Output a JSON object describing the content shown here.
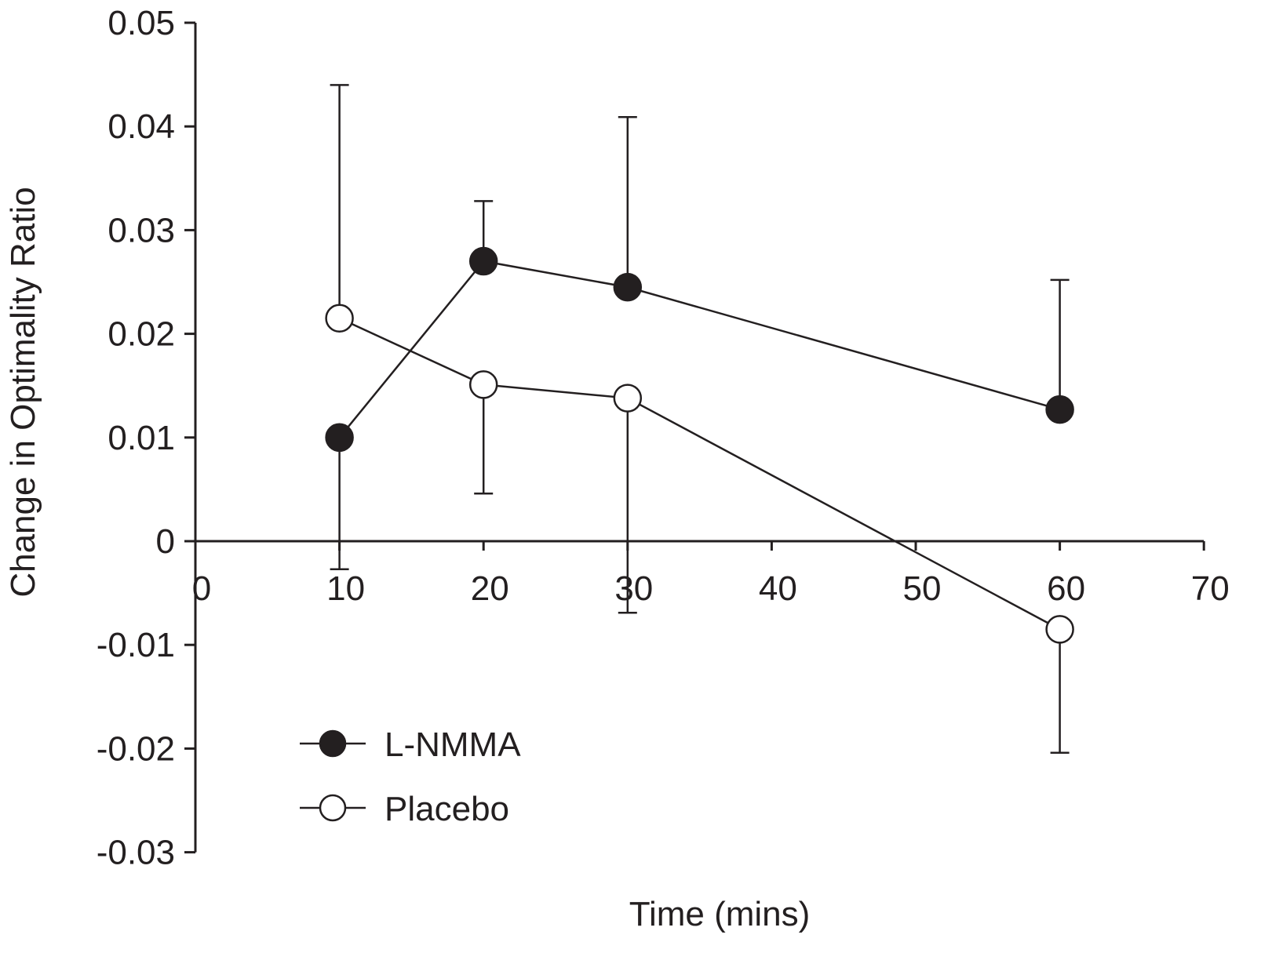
{
  "chart_data": {
    "type": "line",
    "title": "",
    "xlabel": "Time (mins)",
    "ylabel": "Change in Optimality Ratio",
    "xlim": [
      0,
      70
    ],
    "ylim": [
      -0.03,
      0.05
    ],
    "x_ticks": [
      0,
      10,
      20,
      30,
      40,
      50,
      60,
      70
    ],
    "x_tick_labels": [
      "0",
      "10",
      "20",
      "30",
      "40",
      "50",
      "60",
      "70"
    ],
    "y_ticks": [
      0.05,
      0.04,
      0.03,
      0.02,
      0.01,
      0,
      -0.01,
      -0.02,
      -0.03
    ],
    "y_tick_labels": [
      "0.05",
      "0.04",
      "0.03",
      "0.02",
      "0.01",
      "0",
      "-0.01",
      "-0.02",
      "-0.03"
    ],
    "grid": false,
    "legend_position": "bottom-left",
    "series": [
      {
        "name": "L-NMMA",
        "marker": "filled-circle",
        "color": "#231f20",
        "x": [
          10,
          20,
          30,
          60
        ],
        "y": [
          0.01,
          0.027,
          0.0245,
          0.0127
        ],
        "error_bars": [
          {
            "direction": "down",
            "end": -0.0027
          },
          {
            "direction": "up",
            "end": 0.0328
          },
          {
            "direction": "up",
            "end": 0.0409
          },
          {
            "direction": "up",
            "end": 0.0252
          }
        ]
      },
      {
        "name": "Placebo",
        "marker": "open-circle",
        "color": "#231f20",
        "x": [
          10,
          20,
          30,
          60
        ],
        "y": [
          0.0215,
          0.0151,
          0.0138,
          -0.0085
        ],
        "error_bars": [
          {
            "direction": "up",
            "end": 0.044
          },
          {
            "direction": "down",
            "end": 0.0046
          },
          {
            "direction": "down",
            "end": -0.0069
          },
          {
            "direction": "down",
            "end": -0.0204
          }
        ]
      }
    ]
  }
}
